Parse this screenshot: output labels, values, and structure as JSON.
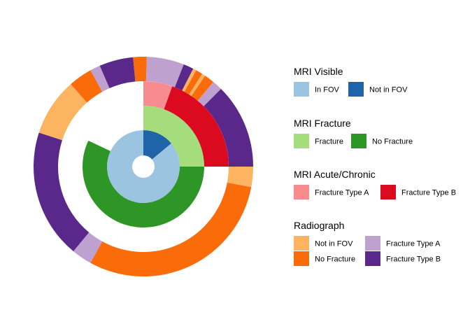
{
  "chart_data": {
    "type": "pie",
    "subtype": "sunburst",
    "title": "",
    "layers": [
      {
        "name": "MRI Visible",
        "segments": [
          {
            "label": "No in FOV",
            "legend": "Not in FOV",
            "start": 0.0,
            "end": 0.14,
            "color": "#1F63A8"
          },
          {
            "label": "In FOV",
            "legend": "In FOV",
            "start": 0.14,
            "end": 1.0,
            "color": "#9BC4E0"
          }
        ]
      },
      {
        "name": "MRI Fracture",
        "segments": [
          {
            "label": "Fracture",
            "start": 0.0,
            "end": 0.25,
            "color": "#A6DD7C"
          },
          {
            "label": "No Fracture",
            "start": 0.25,
            "end": 0.82,
            "color": "#2E9626"
          }
        ]
      },
      {
        "name": "MRI Acute/Chronic",
        "segments": [
          {
            "label": "Fracture Type A",
            "start": 0.0,
            "end": 0.055,
            "color": "#F88B8D"
          },
          {
            "label": "Fracture Type B",
            "start": 0.055,
            "end": 0.25,
            "color": "#DC0A1E"
          }
        ]
      },
      {
        "name": "Radiograph",
        "segments": [
          {
            "label": "No Fracture",
            "start": 0.0,
            "end": 0.005,
            "color": "#FA6B0A"
          },
          {
            "label": "Fracture Type A",
            "start": 0.005,
            "end": 0.06,
            "color": "#BEA1CF"
          },
          {
            "label": "Fracture Type B",
            "start": 0.06,
            "end": 0.075,
            "color": "#5A278A"
          },
          {
            "label": "Not in FOV",
            "start": 0.075,
            "end": 0.08,
            "color": "#FCB461"
          },
          {
            "label": "No Fracture",
            "start": 0.08,
            "end": 0.09,
            "color": "#FA6B0A"
          },
          {
            "label": "Not in FOV",
            "start": 0.09,
            "end": 0.095,
            "color": "#FCB461"
          },
          {
            "label": "No Fracture",
            "start": 0.095,
            "end": 0.11,
            "color": "#FA6B0A"
          },
          {
            "label": "Fracture Type A",
            "start": 0.11,
            "end": 0.125,
            "color": "#BEA1CF"
          },
          {
            "label": "Fracture Type B",
            "start": 0.125,
            "end": 0.25,
            "color": "#5A278A"
          },
          {
            "label": "Not in FOV",
            "start": 0.25,
            "end": 0.28,
            "color": "#FCB461"
          },
          {
            "label": "No Fracture",
            "start": 0.28,
            "end": 0.58,
            "color": "#FA6B0A"
          },
          {
            "label": "Fracture Type A",
            "start": 0.58,
            "end": 0.61,
            "color": "#BEA1CF"
          },
          {
            "label": "Fracture Type B",
            "start": 0.61,
            "end": 0.8,
            "color": "#5A278A"
          },
          {
            "label": "Not in FOV",
            "start": 0.8,
            "end": 0.885,
            "color": "#FCB461"
          },
          {
            "label": "No Fracture",
            "start": 0.885,
            "end": 0.92,
            "color": "#FA6B0A"
          },
          {
            "label": "Fracture Type A",
            "start": 0.92,
            "end": 0.935,
            "color": "#BEA1CF"
          },
          {
            "label": "Fracture Type B",
            "start": 0.935,
            "end": 0.985,
            "color": "#5A278A"
          },
          {
            "label": "No Fracture",
            "start": 0.985,
            "end": 1.0,
            "color": "#FA6B0A"
          }
        ]
      }
    ],
    "legend": {
      "position": "right",
      "groups": [
        {
          "title": "MRI Visible",
          "items": [
            {
              "label": "In FOV",
              "color": "#9BC4E0"
            },
            {
              "label": "Not in FOV",
              "color": "#1F63A8"
            }
          ]
        },
        {
          "title": "MRI Fracture",
          "items": [
            {
              "label": "Fracture",
              "color": "#A6DD7C"
            },
            {
              "label": "No Fracture",
              "color": "#2E9626"
            }
          ]
        },
        {
          "title": "MRI Acute/Chronic",
          "items": [
            {
              "label": "Fracture Type A",
              "color": "#F88B8D"
            },
            {
              "label": "Fracture Type B",
              "color": "#DC0A1E"
            }
          ]
        },
        {
          "title": "Radiograph",
          "items": [
            {
              "label": "Not in FOV",
              "color": "#FCB461"
            },
            {
              "label": "Fracture Type A",
              "color": "#BEA1CF"
            },
            {
              "label": "No Fracture",
              "color": "#FA6B0A"
            },
            {
              "label": "Fracture Type B",
              "color": "#5A278A"
            }
          ]
        }
      ]
    }
  }
}
